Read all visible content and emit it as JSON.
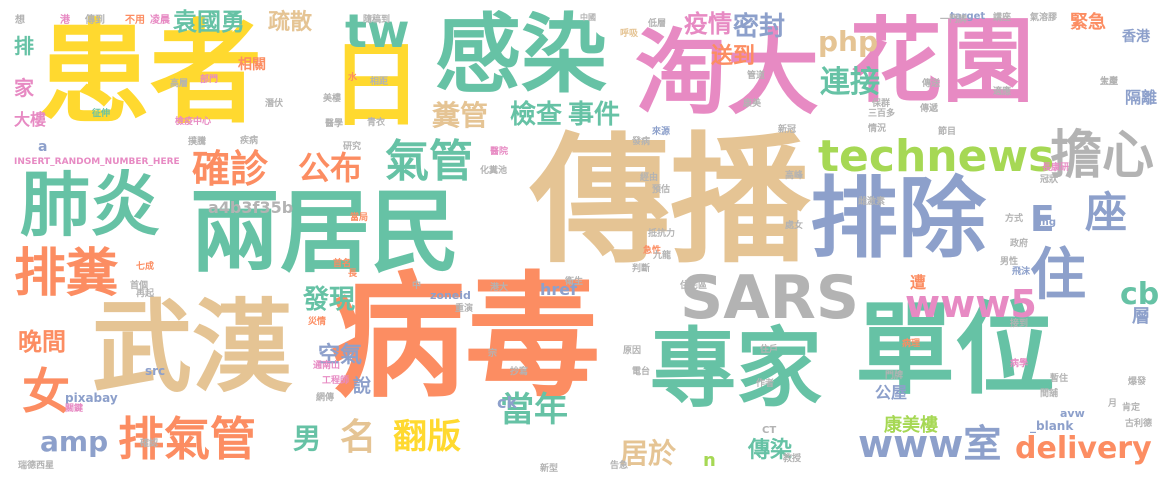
{
  "palette": [
    "#66c2a5",
    "#fc8d62",
    "#8da0cb",
    "#e78ac3",
    "#a6d854",
    "#ffd92f",
    "#e5c494",
    "#b3b3b3"
  ],
  "words": [
    {
      "text": "患者",
      "color": "#ffd92f"
    },
    {
      "text": "日",
      "color": "#ffd92f"
    },
    {
      "text": "感染",
      "color": "#66c2a5"
    },
    {
      "text": "淘大",
      "color": "#e78ac3"
    },
    {
      "text": "花園",
      "color": "#e78ac3"
    },
    {
      "text": "傳播",
      "color": "#e5c494"
    },
    {
      "text": "病毒",
      "color": "#fc8d62"
    },
    {
      "text": "兩居民",
      "color": "#66c2a5"
    },
    {
      "text": "武漢",
      "color": "#e5c494"
    },
    {
      "text": "單位",
      "color": "#66c2a5"
    },
    {
      "text": "專家",
      "color": "#66c2a5"
    },
    {
      "text": "排除",
      "color": "#8da0cb"
    },
    {
      "text": "SARS",
      "color": "#b3b3b3"
    },
    {
      "text": "肺炎",
      "color": "#66c2a5"
    },
    {
      "text": "排糞",
      "color": "#fc8d62"
    },
    {
      "text": "排氣管",
      "color": "#fc8d62"
    },
    {
      "text": "technews",
      "color": "#a6d854"
    },
    {
      "text": "擔心",
      "color": "#b3b3b3"
    },
    {
      "text": "E",
      "color": "#8da0cb"
    },
    {
      "text": "座",
      "color": "#8da0cb"
    },
    {
      "text": "住",
      "color": "#8da0cb"
    },
    {
      "text": "www5",
      "color": "#e78ac3"
    },
    {
      "text": "氣管",
      "color": "#66c2a5"
    },
    {
      "text": "確診",
      "color": "#fc8d62"
    },
    {
      "text": "公布",
      "color": "#fc8d62"
    },
    {
      "text": "女",
      "color": "#fc8d62"
    },
    {
      "text": "tw",
      "color": "#66c2a5"
    },
    {
      "text": "糞管",
      "color": "#e5c494"
    },
    {
      "text": "檢查",
      "color": "#66c2a5"
    },
    {
      "text": "事件",
      "color": "#66c2a5"
    },
    {
      "text": "連接",
      "color": "#66c2a5"
    },
    {
      "text": "php",
      "color": "#e5c494"
    },
    {
      "text": "密封",
      "color": "#8da0cb"
    },
    {
      "text": "疫情",
      "color": "#e78ac3"
    },
    {
      "text": "袁國勇",
      "color": "#66c2a5"
    },
    {
      "text": "疏散",
      "color": "#e5c494"
    },
    {
      "text": "www室",
      "color": "#8da0cb"
    },
    {
      "text": "當年",
      "color": "#66c2a5"
    },
    {
      "text": "翻版",
      "color": "#ffd92f"
    },
    {
      "text": "名",
      "color": "#e5c494"
    },
    {
      "text": "delivery",
      "color": "#fc8d62"
    },
    {
      "text": "amp",
      "color": "#8da0cb"
    },
    {
      "text": "晚間",
      "color": "#fc8d62"
    },
    {
      "text": "cb",
      "color": "#66c2a5"
    },
    {
      "text": "發現",
      "color": "#66c2a5"
    },
    {
      "text": "空氣",
      "color": "#8da0cb"
    },
    {
      "text": "男",
      "color": "#66c2a5"
    },
    {
      "text": "居於",
      "color": "#e5c494"
    },
    {
      "text": "傳染",
      "color": "#66c2a5"
    },
    {
      "text": "康美樓",
      "color": "#a6d854"
    },
    {
      "text": "送到",
      "color": "#fc8d62"
    },
    {
      "text": "緊急",
      "color": "#fc8d62"
    },
    {
      "text": "隔離",
      "color": "#8da0cb"
    },
    {
      "text": "香港",
      "color": "#8da0cb"
    },
    {
      "text": "大樓",
      "color": "#e78ac3"
    },
    {
      "text": "家",
      "color": "#e78ac3"
    },
    {
      "text": "排",
      "color": "#66c2a5"
    },
    {
      "text": "層",
      "color": "#8da0cb"
    },
    {
      "text": "說",
      "color": "#8da0cb"
    },
    {
      "text": "公屋",
      "color": "#8da0cb"
    },
    {
      "text": "遭",
      "color": "#fc8d62"
    },
    {
      "text": "a4b3f35b",
      "color": "#b3b3b3"
    },
    {
      "text": "相關",
      "color": "#fc8d62"
    },
    {
      "text": "INSERT_RANDOM_NUMBER_HERE",
      "color": "#e78ac3"
    },
    {
      "text": "href",
      "color": "#8da0cb"
    },
    {
      "text": "zoneid",
      "color": "#8da0cb"
    },
    {
      "text": "pixabay",
      "color": "#8da0cb"
    },
    {
      "text": "ck",
      "color": "#8da0cb"
    },
    {
      "text": "src",
      "color": "#8da0cb"
    },
    {
      "text": "img",
      "color": "#8da0cb"
    },
    {
      "text": "n",
      "color": "#a6d854"
    },
    {
      "text": "target",
      "color": "#8da0cb"
    },
    {
      "text": "_blank",
      "color": "#8da0cb"
    },
    {
      "text": "avw",
      "color": "#8da0cb"
    },
    {
      "text": "CT",
      "color": "#b3b3b3"
    },
    {
      "text": "a",
      "color": "#8da0cb"
    },
    {
      "text": "想",
      "color": "#b3b3b3"
    },
    {
      "text": "港",
      "color": "#e78ac3"
    },
    {
      "text": "傳到",
      "color": "#b3b3b3"
    },
    {
      "text": "不用",
      "color": "#fc8d62"
    },
    {
      "text": "凌晨",
      "color": "#e78ac3"
    },
    {
      "text": "中國",
      "color": "#b3b3b3"
    },
    {
      "text": "隨稿到",
      "color": "#b3b3b3"
    },
    {
      "text": "低層",
      "color": "#b3b3b3"
    },
    {
      "text": "呼吸",
      "color": "#e5c494"
    },
    {
      "text": "一門牌",
      "color": "#b3b3b3"
    },
    {
      "text": "講座",
      "color": "#b3b3b3"
    },
    {
      "text": "氣溶膠",
      "color": "#b3b3b3"
    },
    {
      "text": "生產",
      "color": "#b3b3b3"
    },
    {
      "text": "適應",
      "color": "#b3b3b3"
    },
    {
      "text": "發病",
      "color": "#b3b3b3"
    },
    {
      "text": "來源",
      "color": "#8da0cb"
    },
    {
      "text": "醫院",
      "color": "#e78ac3"
    },
    {
      "text": "化糞池",
      "color": "#b3b3b3"
    },
    {
      "text": "經由",
      "color": "#b3b3b3"
    },
    {
      "text": "預估",
      "color": "#b3b3b3"
    },
    {
      "text": "抵抗力",
      "color": "#b3b3b3"
    },
    {
      "text": "急性",
      "color": "#fc8d62"
    },
    {
      "text": "九龍",
      "color": "#b3b3b3"
    },
    {
      "text": "判斷",
      "color": "#b3b3b3"
    },
    {
      "text": "住宅區",
      "color": "#b3b3b3"
    },
    {
      "text": "衛生",
      "color": "#b3b3b3"
    },
    {
      "text": "港大",
      "color": "#b3b3b3"
    },
    {
      "text": "重演",
      "color": "#b3b3b3"
    },
    {
      "text": "中",
      "color": "#b3b3b3"
    },
    {
      "text": "災情",
      "color": "#fc8d62"
    },
    {
      "text": "長",
      "color": "#fc8d62"
    },
    {
      "text": "首名",
      "color": "#fc8d62"
    },
    {
      "text": "當局",
      "color": "#fc8d62"
    },
    {
      "text": "通南山",
      "color": "#e78ac3"
    },
    {
      "text": "工程師",
      "color": "#e78ac3"
    },
    {
      "text": "網傳",
      "color": "#b3b3b3"
    },
    {
      "text": "關鍵",
      "color": "#e78ac3"
    },
    {
      "text": "確認",
      "color": "#b3b3b3"
    },
    {
      "text": "首個",
      "color": "#b3b3b3"
    },
    {
      "text": "七成",
      "color": "#fc8d62"
    },
    {
      "text": "再起",
      "color": "#b3b3b3"
    },
    {
      "text": "病理",
      "color": "#fc8d62"
    },
    {
      "text": "大型",
      "color": "#b3b3b3"
    },
    {
      "text": "病學",
      "color": "#e78ac3"
    },
    {
      "text": "肯定",
      "color": "#b3b3b3"
    },
    {
      "text": "政府",
      "color": "#b3b3b3"
    },
    {
      "text": "方式",
      "color": "#b3b3b3"
    },
    {
      "text": "男性",
      "color": "#b3b3b3"
    },
    {
      "text": "飛沫",
      "color": "#8da0cb"
    },
    {
      "text": "長康研",
      "color": "#e78ac3"
    },
    {
      "text": "冠狀",
      "color": "#b3b3b3"
    },
    {
      "text": "高峰",
      "color": "#b3b3b3"
    },
    {
      "text": "處女",
      "color": "#b3b3b3"
    },
    {
      "text": "潛伏",
      "color": "#b3b3b3"
    },
    {
      "text": "研究",
      "color": "#b3b3b3"
    },
    {
      "text": "醫學",
      "color": "#b3b3b3"
    },
    {
      "text": "檢疫中心",
      "color": "#e78ac3"
    },
    {
      "text": "美樓",
      "color": "#b3b3b3"
    },
    {
      "text": "青衣",
      "color": "#b3b3b3"
    },
    {
      "text": "疾病",
      "color": "#b3b3b3"
    },
    {
      "text": "三百多",
      "color": "#b3b3b3"
    },
    {
      "text": "情況",
      "color": "#b3b3b3"
    },
    {
      "text": "節目",
      "color": "#b3b3b3"
    },
    {
      "text": "新冠",
      "color": "#b3b3b3"
    },
    {
      "text": "傳遞",
      "color": "#b3b3b3"
    },
    {
      "text": "部門",
      "color": "#e78ac3"
    },
    {
      "text": "高層",
      "color": "#b3b3b3"
    },
    {
      "text": "征伸",
      "color": "#66c2a5"
    },
    {
      "text": "撲騰",
      "color": "#b3b3b3"
    },
    {
      "text": "瑞德西星",
      "color": "#b3b3b3"
    },
    {
      "text": "教授",
      "color": "#b3b3b3"
    },
    {
      "text": "告急",
      "color": "#b3b3b3"
    },
    {
      "text": "新型",
      "color": "#b3b3b3"
    },
    {
      "text": "作者",
      "color": "#b3b3b3"
    },
    {
      "text": "門牌",
      "color": "#b3b3b3"
    },
    {
      "text": "住戶",
      "color": "#b3b3b3"
    },
    {
      "text": "原因",
      "color": "#b3b3b3"
    },
    {
      "text": "電台",
      "color": "#b3b3b3"
    },
    {
      "text": "抄寫",
      "color": "#b3b3b3"
    },
    {
      "text": "宗",
      "color": "#b3b3b3"
    },
    {
      "text": "水",
      "color": "#fc8d62"
    },
    {
      "text": "相距",
      "color": "#b3b3b3"
    },
    {
      "text": "管道",
      "color": "#b3b3b3"
    },
    {
      "text": "康美",
      "color": "#b3b3b3"
    },
    {
      "text": "保群",
      "color": "#b3b3b3"
    },
    {
      "text": "傳送",
      "color": "#b3b3b3"
    },
    {
      "text": "月",
      "color": "#b3b3b3"
    },
    {
      "text": "雌激素",
      "color": "#b3b3b3"
    },
    {
      "text": "接到",
      "color": "#b3b3b3"
    },
    {
      "text": "暫住",
      "color": "#b3b3b3"
    },
    {
      "text": "間舖",
      "color": "#b3b3b3"
    },
    {
      "text": "爆發",
      "color": "#b3b3b3"
    },
    {
      "text": "古利德",
      "color": "#b3b3b3"
    }
  ]
}
